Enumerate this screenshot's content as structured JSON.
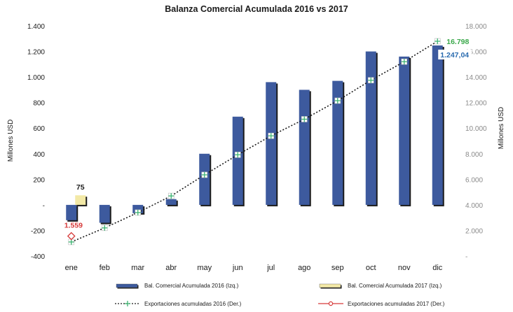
{
  "chart_data": {
    "type": "bar",
    "title": "Balanza Comercial Acumulada 2016 vs 2017",
    "ylabel_left": "Millones USD",
    "ylabel_right": "Millones USD",
    "ylim_left": [
      -400,
      1400
    ],
    "ylim_right": [
      0,
      18000
    ],
    "yticks_left": [
      -400,
      -200,
      0,
      200,
      400,
      600,
      800,
      1000,
      1200,
      1400
    ],
    "yticks_left_labels": [
      "-400",
      "-200",
      "-",
      "200",
      "400",
      "600",
      "800",
      "1.000",
      "1.200",
      "1.400"
    ],
    "yticks_right": [
      0,
      2000,
      4000,
      6000,
      8000,
      10000,
      12000,
      14000,
      16000,
      18000
    ],
    "yticks_right_labels": [
      "-",
      "2.000",
      "4.000",
      "6.000",
      "8.000",
      "10.000",
      "12.000",
      "14.000",
      "16.000",
      "18.000"
    ],
    "categories": [
      "ene",
      "feb",
      "mar",
      "abr",
      "may",
      "jun",
      "jul",
      "ago",
      "sep",
      "oct",
      "nov",
      "dic"
    ],
    "series": [
      {
        "name": "Bal. Comercial Acumulada 2016 (Izq.)",
        "type": "bar",
        "axis": "left",
        "color": "#3d5a9e",
        "values": [
          -120,
          -140,
          -65,
          45,
          400,
          690,
          960,
          900,
          970,
          1200,
          1160,
          1247
        ]
      },
      {
        "name": "Bal. Comercial Acumulada 2017 (Izq.)",
        "type": "bar",
        "axis": "left",
        "color": "#f3e9a6",
        "values": [
          75,
          null,
          null,
          null,
          null,
          null,
          null,
          null,
          null,
          null,
          null,
          null
        ]
      },
      {
        "name": "Exportaciones acumuladas 2016 (Der.)",
        "type": "line",
        "axis": "right",
        "color": "#1a1a1a",
        "marker_color": "#3cb371",
        "values": [
          1100,
          2200,
          3400,
          4700,
          6350,
          7920,
          9400,
          10700,
          12150,
          13750,
          15200,
          16798
        ]
      },
      {
        "name": "Exportaciones acumuladas 2017 (Der.)",
        "type": "line",
        "axis": "right",
        "color": "#d63a3a",
        "values": [
          1559,
          null,
          null,
          null,
          null,
          null,
          null,
          null,
          null,
          null,
          null,
          null
        ]
      }
    ],
    "data_labels": [
      {
        "text": "75",
        "series": 1,
        "index": 0,
        "color": "#1a1a1a"
      },
      {
        "text": "1.559",
        "series": 3,
        "index": 0,
        "color": "#d63a3a"
      },
      {
        "text": "16.798",
        "series": 2,
        "index": 11,
        "color": "#3aa84a"
      },
      {
        "text": "1.247,04",
        "series": 0,
        "index": 11,
        "color": "#2b6cb0"
      }
    ],
    "legend_position": "bottom",
    "grid": false
  }
}
